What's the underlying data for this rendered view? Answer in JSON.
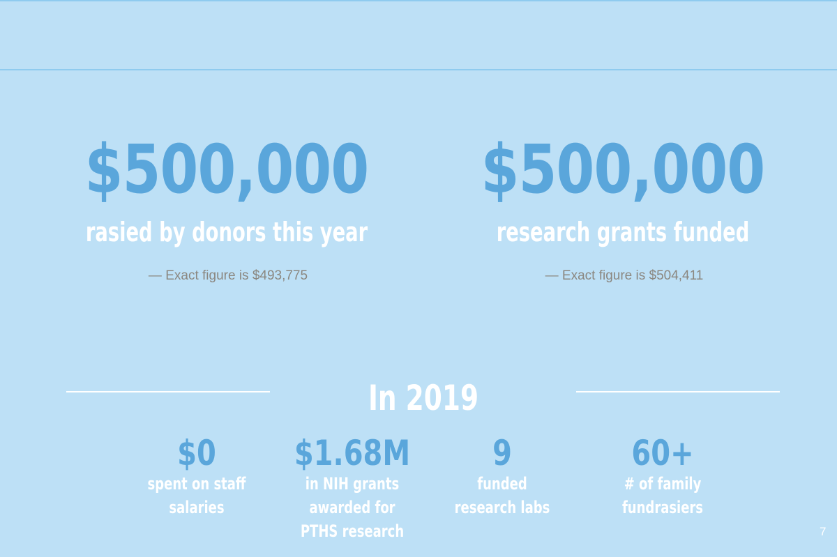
{
  "headline_stats": [
    {
      "value": "$500,000",
      "label": "rasied by donors this year",
      "note": "— Exact figure is $493,775"
    },
    {
      "value": "$500,000",
      "label": "research grants funded",
      "note": "— Exact figure is $504,411"
    }
  ],
  "section_title": "In 2019",
  "stats": [
    {
      "value": "$0",
      "label_lines": [
        "spent on staff",
        "salaries"
      ]
    },
    {
      "value": "$1.68M",
      "label_lines": [
        "in NIH grants",
        "awarded for",
        "PTHS research"
      ]
    },
    {
      "value": "9",
      "label_lines": [
        "funded",
        "research labs"
      ]
    },
    {
      "value": "60+",
      "label_lines": [
        "# of family",
        "fundrasiers"
      ]
    }
  ],
  "page_number": "7"
}
